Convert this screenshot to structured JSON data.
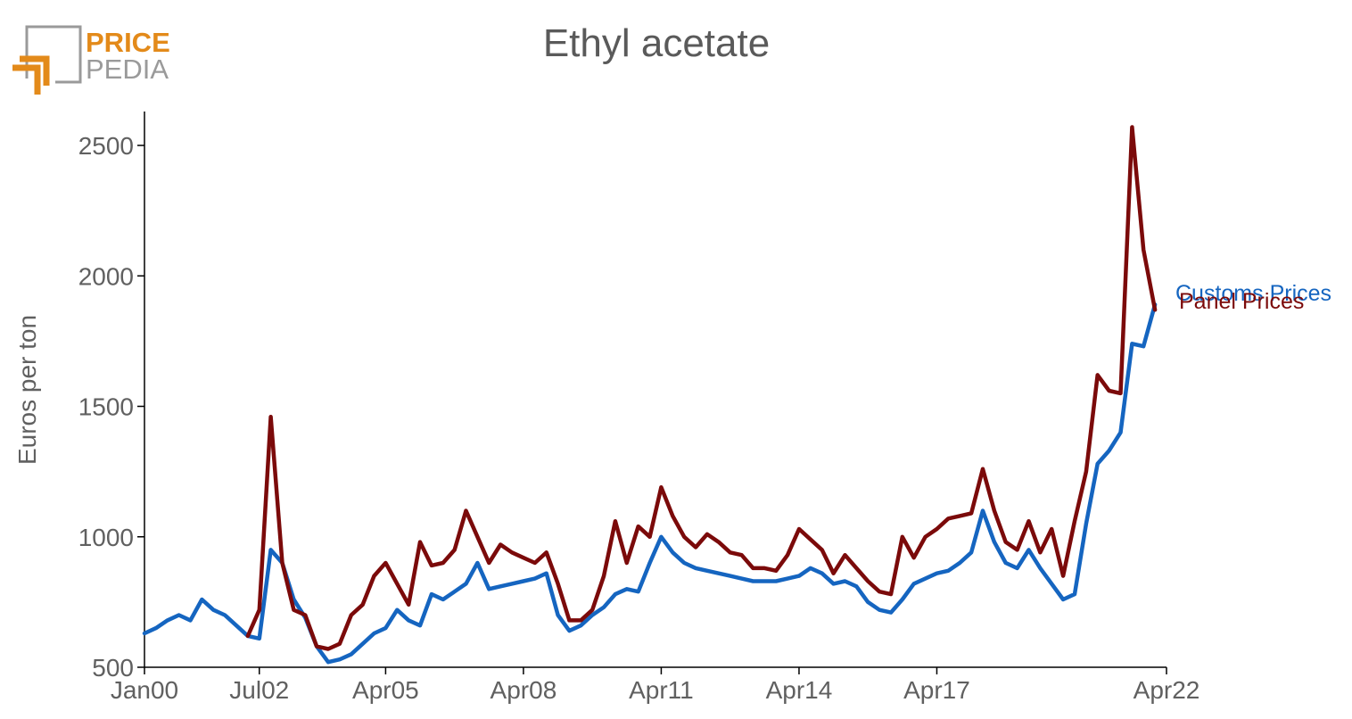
{
  "logo": {
    "line1": "PRICE",
    "line2": "PEDIA",
    "accent_color": "#e38a1a",
    "gray_color": "#9a9a9a"
  },
  "chart_data": {
    "type": "line",
    "title": "Ethyl acetate",
    "xlabel": "",
    "ylabel": "Euros per ton",
    "ylim": [
      500,
      2630
    ],
    "y_ticks": [
      500,
      1000,
      1500,
      2000,
      2500
    ],
    "x_range": [
      "2000-01",
      "2022-04"
    ],
    "x_tick_labels": [
      {
        "date": "2000-01",
        "label": "Jan00"
      },
      {
        "date": "2002-07",
        "label": "Jul02"
      },
      {
        "date": "2005-04",
        "label": "Apr05"
      },
      {
        "date": "2008-04",
        "label": "Apr08"
      },
      {
        "date": "2011-04",
        "label": "Apr11"
      },
      {
        "date": "2014-04",
        "label": "Apr14"
      },
      {
        "date": "2017-04",
        "label": "Apr17"
      },
      {
        "date": "2022-04",
        "label": "Apr22"
      }
    ],
    "grid": false,
    "series": [
      {
        "name": "Customs Prices",
        "color": "#1565c0",
        "points": [
          [
            "2000-01",
            630
          ],
          [
            "2000-04",
            650
          ],
          [
            "2000-07",
            680
          ],
          [
            "2000-10",
            700
          ],
          [
            "2001-01",
            680
          ],
          [
            "2001-04",
            760
          ],
          [
            "2001-07",
            720
          ],
          [
            "2001-10",
            700
          ],
          [
            "2002-01",
            660
          ],
          [
            "2002-04",
            620
          ],
          [
            "2002-07",
            610
          ],
          [
            "2002-10",
            950
          ],
          [
            "2003-01",
            900
          ],
          [
            "2003-04",
            760
          ],
          [
            "2003-07",
            690
          ],
          [
            "2003-10",
            580
          ],
          [
            "2004-01",
            520
          ],
          [
            "2004-04",
            530
          ],
          [
            "2004-07",
            550
          ],
          [
            "2004-10",
            590
          ],
          [
            "2005-01",
            630
          ],
          [
            "2005-04",
            650
          ],
          [
            "2005-07",
            720
          ],
          [
            "2005-10",
            680
          ],
          [
            "2006-01",
            660
          ],
          [
            "2006-04",
            780
          ],
          [
            "2006-07",
            760
          ],
          [
            "2006-10",
            790
          ],
          [
            "2007-01",
            820
          ],
          [
            "2007-04",
            900
          ],
          [
            "2007-07",
            800
          ],
          [
            "2007-10",
            810
          ],
          [
            "2008-01",
            820
          ],
          [
            "2008-04",
            830
          ],
          [
            "2008-07",
            840
          ],
          [
            "2008-10",
            860
          ],
          [
            "2009-01",
            700
          ],
          [
            "2009-04",
            640
          ],
          [
            "2009-07",
            660
          ],
          [
            "2009-10",
            700
          ],
          [
            "2010-01",
            730
          ],
          [
            "2010-04",
            780
          ],
          [
            "2010-07",
            800
          ],
          [
            "2010-10",
            790
          ],
          [
            "2011-01",
            900
          ],
          [
            "2011-04",
            1000
          ],
          [
            "2011-07",
            940
          ],
          [
            "2011-10",
            900
          ],
          [
            "2012-01",
            880
          ],
          [
            "2012-04",
            870
          ],
          [
            "2012-07",
            860
          ],
          [
            "2012-10",
            850
          ],
          [
            "2013-01",
            840
          ],
          [
            "2013-04",
            830
          ],
          [
            "2013-07",
            830
          ],
          [
            "2013-10",
            830
          ],
          [
            "2014-01",
            840
          ],
          [
            "2014-04",
            850
          ],
          [
            "2014-07",
            880
          ],
          [
            "2014-10",
            860
          ],
          [
            "2015-01",
            820
          ],
          [
            "2015-04",
            830
          ],
          [
            "2015-07",
            810
          ],
          [
            "2015-10",
            750
          ],
          [
            "2016-01",
            720
          ],
          [
            "2016-04",
            710
          ],
          [
            "2016-07",
            760
          ],
          [
            "2016-10",
            820
          ],
          [
            "2017-01",
            840
          ],
          [
            "2017-04",
            860
          ],
          [
            "2017-07",
            870
          ],
          [
            "2017-10",
            900
          ],
          [
            "2018-01",
            940
          ],
          [
            "2018-04",
            1100
          ],
          [
            "2018-07",
            980
          ],
          [
            "2018-10",
            900
          ],
          [
            "2019-01",
            880
          ],
          [
            "2019-04",
            950
          ],
          [
            "2019-07",
            880
          ],
          [
            "2019-10",
            820
          ],
          [
            "2020-01",
            760
          ],
          [
            "2020-04",
            780
          ],
          [
            "2020-07",
            1050
          ],
          [
            "2020-10",
            1280
          ],
          [
            "2021-01",
            1330
          ],
          [
            "2021-04",
            1400
          ],
          [
            "2021-07",
            1740
          ],
          [
            "2021-10",
            1730
          ],
          [
            "2022-01",
            1890
          ]
        ]
      },
      {
        "name": "Panel Prices",
        "color": "#7b0a0a",
        "points": [
          [
            "2002-04",
            620
          ],
          [
            "2002-07",
            720
          ],
          [
            "2002-10",
            1460
          ],
          [
            "2003-01",
            900
          ],
          [
            "2003-04",
            720
          ],
          [
            "2003-07",
            700
          ],
          [
            "2003-10",
            580
          ],
          [
            "2004-01",
            570
          ],
          [
            "2004-04",
            590
          ],
          [
            "2004-07",
            700
          ],
          [
            "2004-10",
            740
          ],
          [
            "2005-01",
            850
          ],
          [
            "2005-04",
            900
          ],
          [
            "2005-07",
            820
          ],
          [
            "2005-10",
            740
          ],
          [
            "2006-01",
            980
          ],
          [
            "2006-04",
            890
          ],
          [
            "2006-07",
            900
          ],
          [
            "2006-10",
            950
          ],
          [
            "2007-01",
            1100
          ],
          [
            "2007-04",
            1000
          ],
          [
            "2007-07",
            900
          ],
          [
            "2007-10",
            970
          ],
          [
            "2008-01",
            940
          ],
          [
            "2008-04",
            920
          ],
          [
            "2008-07",
            900
          ],
          [
            "2008-10",
            940
          ],
          [
            "2009-01",
            820
          ],
          [
            "2009-04",
            680
          ],
          [
            "2009-07",
            680
          ],
          [
            "2009-10",
            720
          ],
          [
            "2010-01",
            850
          ],
          [
            "2010-04",
            1060
          ],
          [
            "2010-07",
            900
          ],
          [
            "2010-10",
            1040
          ],
          [
            "2011-01",
            1000
          ],
          [
            "2011-04",
            1190
          ],
          [
            "2011-07",
            1080
          ],
          [
            "2011-10",
            1000
          ],
          [
            "2012-01",
            960
          ],
          [
            "2012-04",
            1010
          ],
          [
            "2012-07",
            980
          ],
          [
            "2012-10",
            940
          ],
          [
            "2013-01",
            930
          ],
          [
            "2013-04",
            880
          ],
          [
            "2013-07",
            880
          ],
          [
            "2013-10",
            870
          ],
          [
            "2014-01",
            930
          ],
          [
            "2014-04",
            1030
          ],
          [
            "2014-07",
            990
          ],
          [
            "2014-10",
            950
          ],
          [
            "2015-01",
            860
          ],
          [
            "2015-04",
            930
          ],
          [
            "2015-07",
            880
          ],
          [
            "2015-10",
            830
          ],
          [
            "2016-01",
            790
          ],
          [
            "2016-04",
            780
          ],
          [
            "2016-07",
            1000
          ],
          [
            "2016-10",
            920
          ],
          [
            "2017-01",
            1000
          ],
          [
            "2017-04",
            1030
          ],
          [
            "2017-07",
            1070
          ],
          [
            "2017-10",
            1080
          ],
          [
            "2018-01",
            1090
          ],
          [
            "2018-04",
            1260
          ],
          [
            "2018-07",
            1100
          ],
          [
            "2018-10",
            980
          ],
          [
            "2019-01",
            950
          ],
          [
            "2019-04",
            1060
          ],
          [
            "2019-07",
            940
          ],
          [
            "2019-10",
            1030
          ],
          [
            "2020-01",
            850
          ],
          [
            "2020-04",
            1060
          ],
          [
            "2020-07",
            1250
          ],
          [
            "2020-10",
            1620
          ],
          [
            "2021-01",
            1560
          ],
          [
            "2021-04",
            1550
          ],
          [
            "2021-07",
            2570
          ],
          [
            "2021-10",
            2100
          ],
          [
            "2022-01",
            1870
          ]
        ]
      }
    ],
    "legend": "right"
  }
}
